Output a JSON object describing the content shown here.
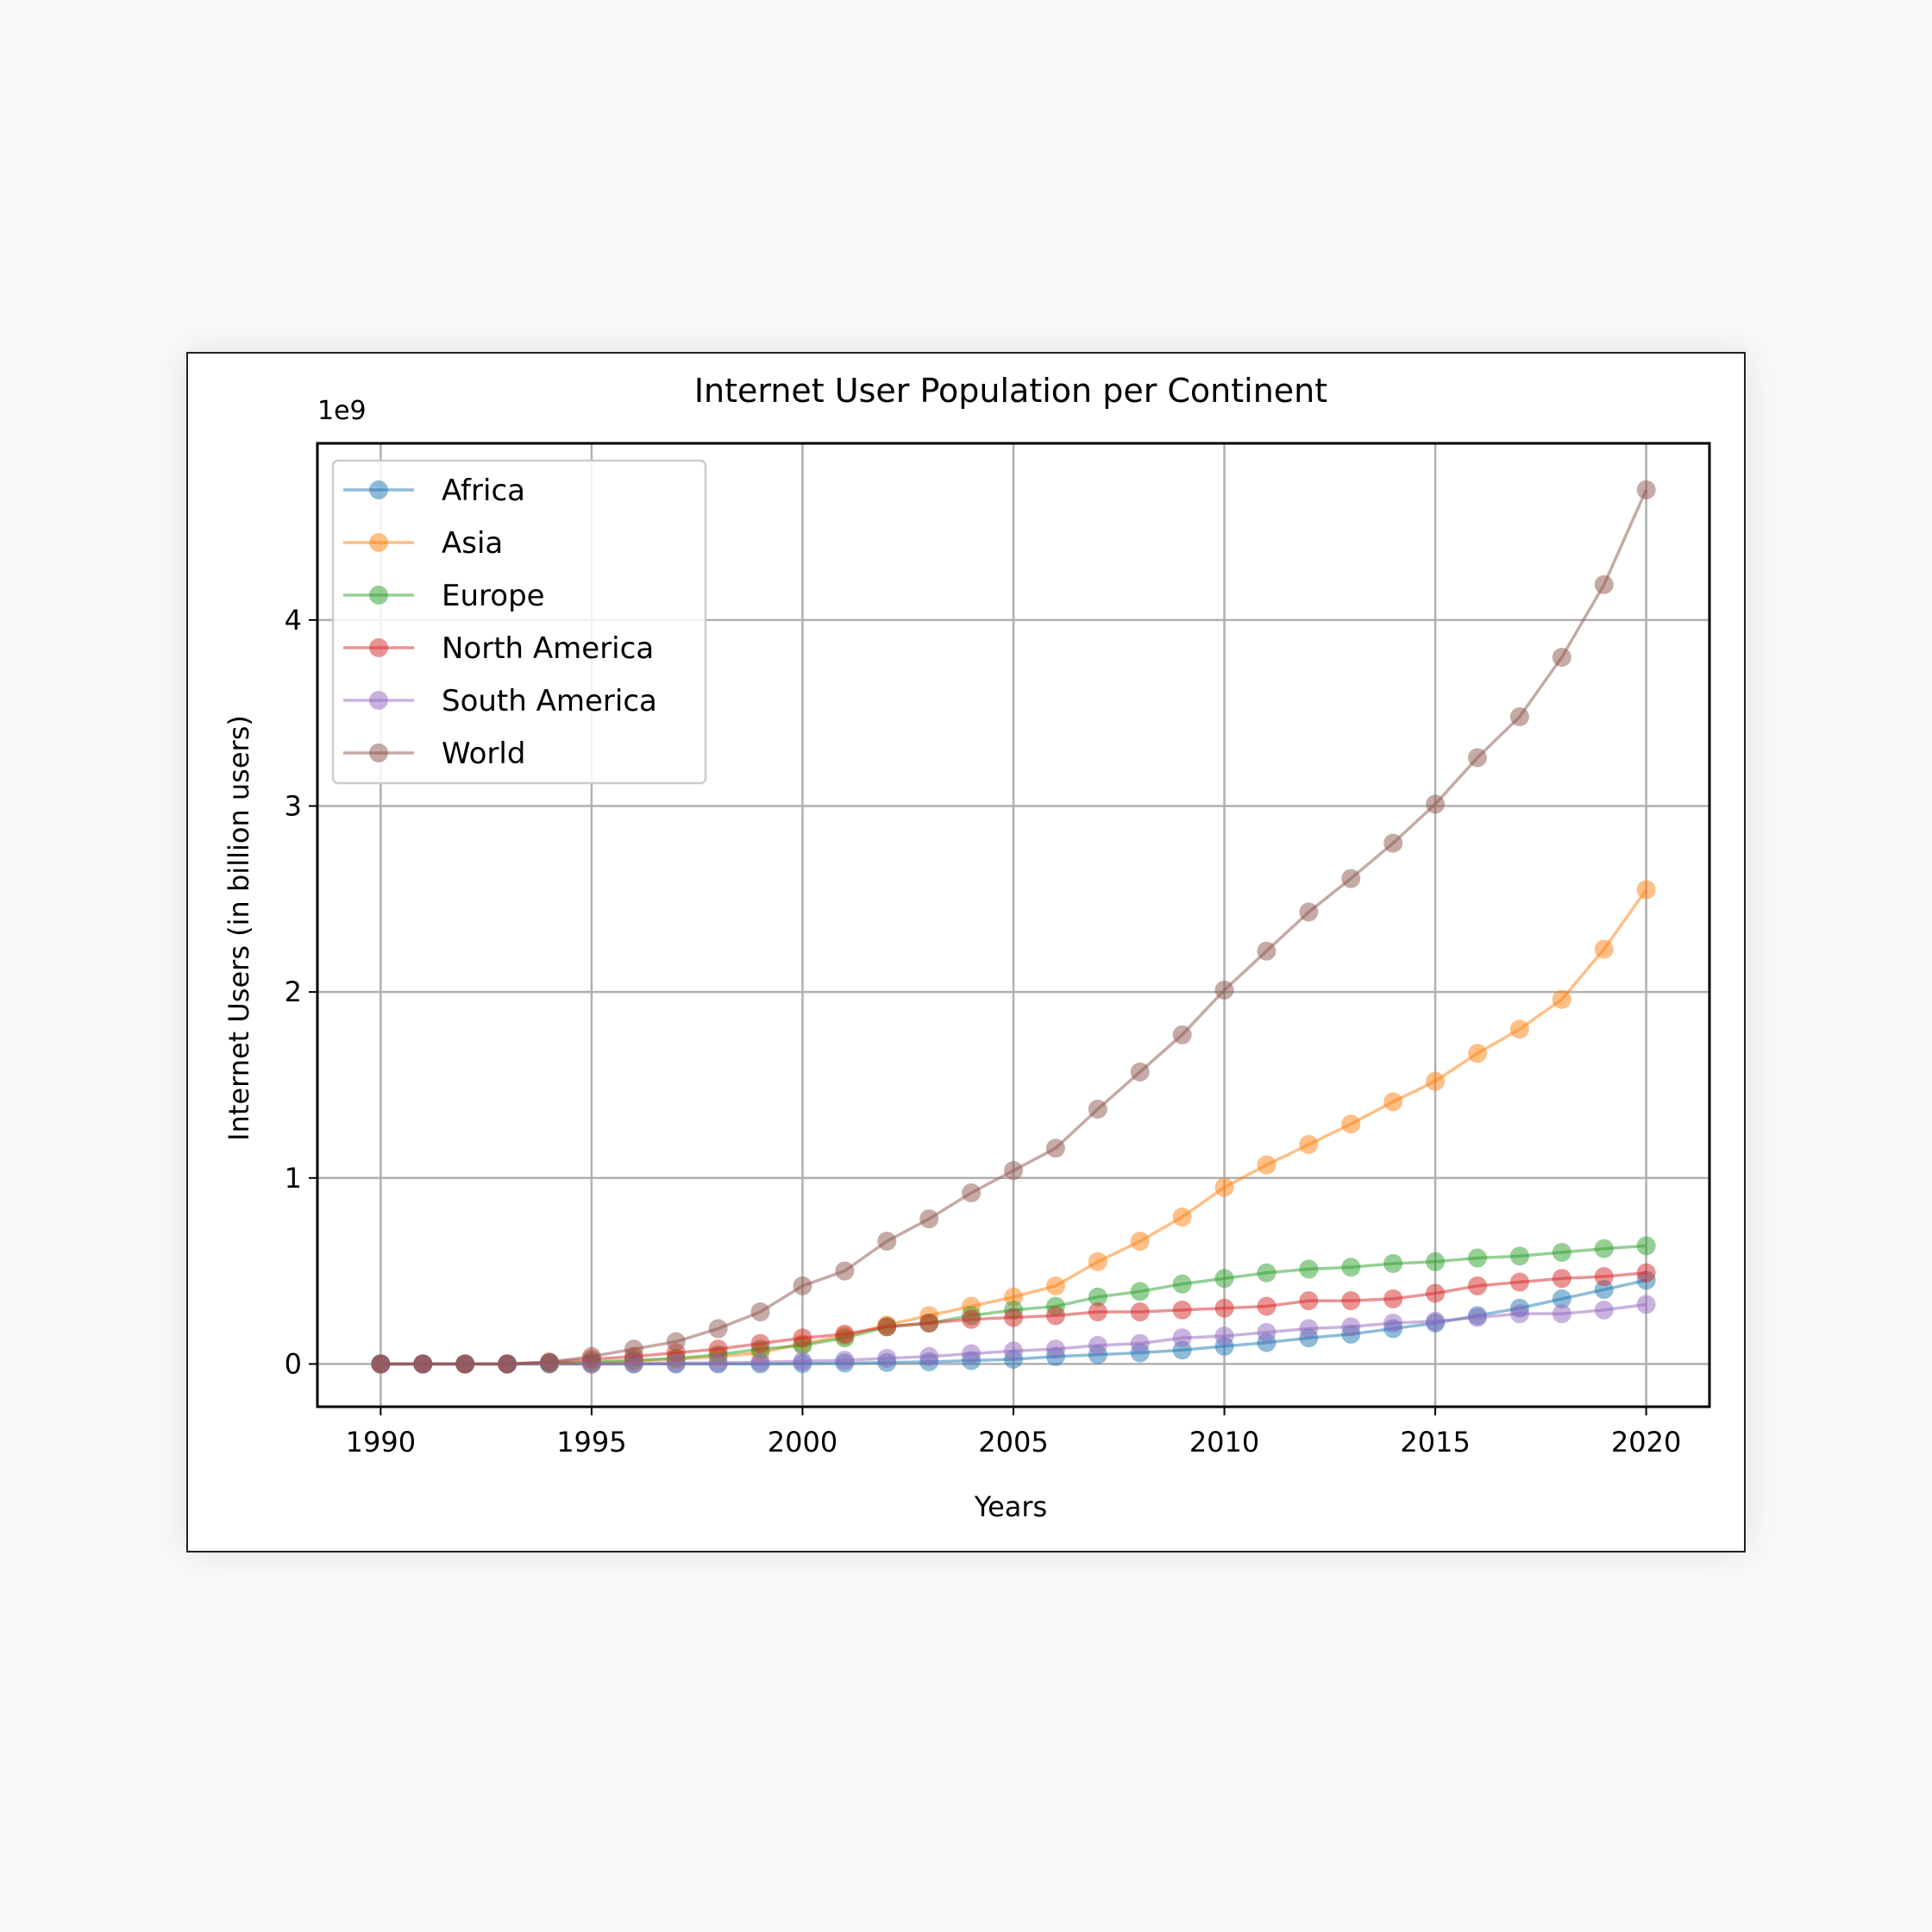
{
  "chart_data": {
    "type": "line",
    "title": "Internet User Population per Continent",
    "xlabel": "Years",
    "ylabel": "Internet Users (in billion users)",
    "y_offset_label": "1e9",
    "xlim": [
      1988.5,
      2021.5
    ],
    "ylim": [
      -0.23,
      4.95
    ],
    "x_ticks": [
      1990,
      1995,
      2000,
      2005,
      2010,
      2015,
      2020
    ],
    "y_ticks": [
      0,
      1,
      2,
      3,
      4
    ],
    "grid": true,
    "legend_position": "top-left",
    "x": [
      1990,
      1991,
      1992,
      1993,
      1994,
      1995,
      1996,
      1997,
      1998,
      1999,
      2000,
      2001,
      2002,
      2003,
      2004,
      2005,
      2006,
      2007,
      2008,
      2009,
      2010,
      2011,
      2012,
      2013,
      2014,
      2015,
      2016,
      2017,
      2018,
      2019,
      2020
    ],
    "series": [
      {
        "name": "Africa",
        "color": "#1f77b4",
        "values": [
          0,
          0,
          0,
          0,
          0,
          0,
          0,
          0,
          0,
          0,
          0.002,
          0.005,
          0.008,
          0.012,
          0.018,
          0.025,
          0.04,
          0.05,
          0.06,
          0.075,
          0.095,
          0.115,
          0.14,
          0.16,
          0.19,
          0.22,
          0.26,
          0.3,
          0.35,
          0.4,
          0.45
        ]
      },
      {
        "name": "Asia",
        "color": "#ff7f0e",
        "values": [
          0,
          0,
          0,
          0,
          0.002,
          0.005,
          0.015,
          0.025,
          0.04,
          0.06,
          0.11,
          0.15,
          0.21,
          0.26,
          0.31,
          0.36,
          0.42,
          0.55,
          0.66,
          0.79,
          0.95,
          1.07,
          1.18,
          1.29,
          1.41,
          1.52,
          1.67,
          1.8,
          1.96,
          2.23,
          2.55
        ]
      },
      {
        "name": "Europe",
        "color": "#2ca02c",
        "values": [
          0,
          0,
          0,
          0,
          0.005,
          0.01,
          0.02,
          0.03,
          0.05,
          0.08,
          0.1,
          0.14,
          0.2,
          0.22,
          0.26,
          0.29,
          0.31,
          0.36,
          0.39,
          0.43,
          0.46,
          0.49,
          0.51,
          0.52,
          0.54,
          0.55,
          0.57,
          0.58,
          0.6,
          0.62,
          0.635
        ]
      },
      {
        "name": "North America",
        "color": "#d62728",
        "values": [
          0,
          0,
          0,
          0,
          0.01,
          0.025,
          0.04,
          0.06,
          0.08,
          0.11,
          0.14,
          0.16,
          0.2,
          0.22,
          0.24,
          0.25,
          0.26,
          0.28,
          0.28,
          0.29,
          0.3,
          0.31,
          0.34,
          0.34,
          0.35,
          0.38,
          0.42,
          0.44,
          0.46,
          0.47,
          0.49
        ]
      },
      {
        "name": "South America",
        "color": "#9467bd",
        "values": [
          0,
          0,
          0,
          0,
          0,
          0,
          0.002,
          0.004,
          0.006,
          0.01,
          0.015,
          0.02,
          0.03,
          0.04,
          0.055,
          0.07,
          0.08,
          0.1,
          0.11,
          0.14,
          0.15,
          0.17,
          0.19,
          0.2,
          0.22,
          0.23,
          0.25,
          0.27,
          0.27,
          0.29,
          0.32
        ]
      },
      {
        "name": "World",
        "color": "#8c564b",
        "values": [
          0,
          0,
          0,
          0,
          0.01,
          0.04,
          0.08,
          0.12,
          0.19,
          0.28,
          0.42,
          0.5,
          0.66,
          0.78,
          0.92,
          1.04,
          1.16,
          1.37,
          1.57,
          1.77,
          2.01,
          2.22,
          2.43,
          2.61,
          2.8,
          3.01,
          3.26,
          3.48,
          3.8,
          4.19,
          4.7
        ]
      }
    ]
  }
}
